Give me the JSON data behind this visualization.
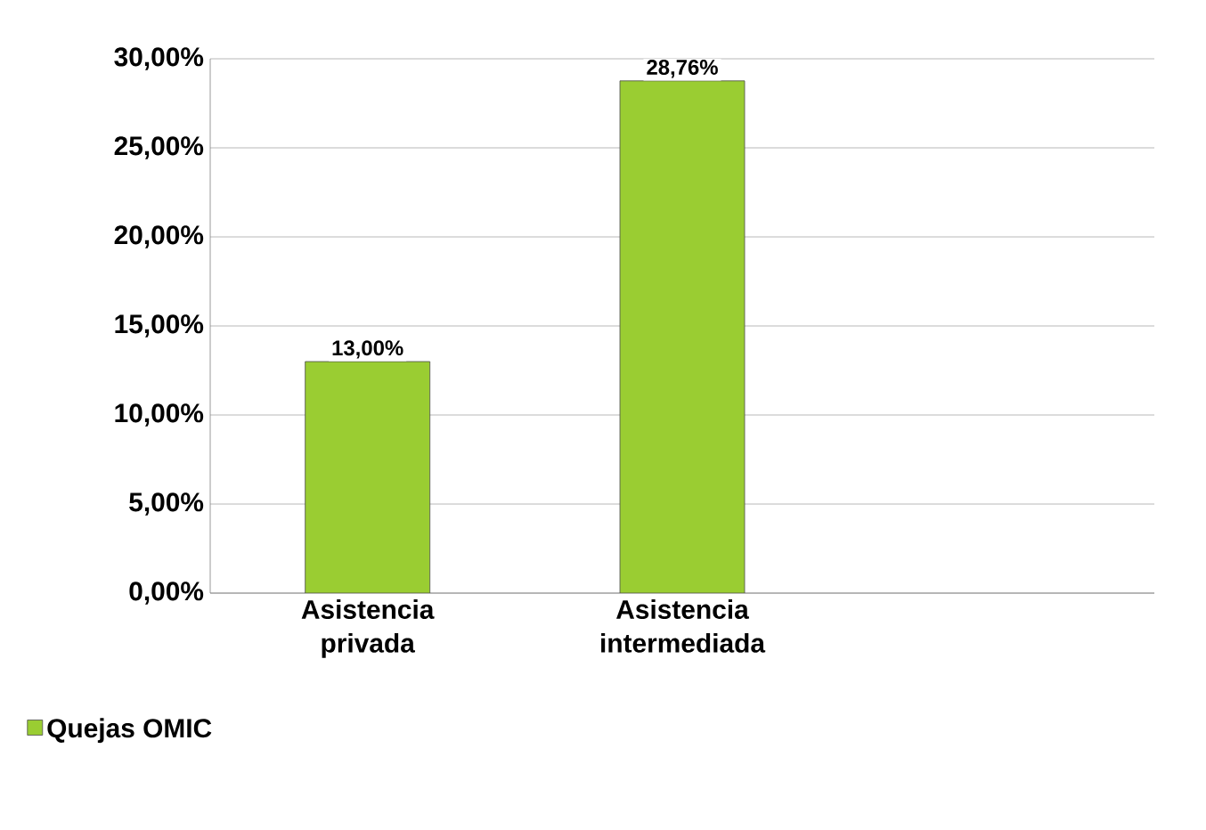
{
  "chart_data": {
    "type": "bar",
    "categories": [
      "Asistencia privada",
      "Asistencia intermediada",
      null
    ],
    "series": [
      {
        "name": "Quejas OMIC",
        "color": "#9acd32",
        "values": [
          13.0,
          28.76,
          null
        ],
        "value_labels": [
          "13,00%",
          "28,76%",
          null
        ]
      }
    ],
    "ylim": [
      0,
      30
    ],
    "yticks": [
      {
        "value": 0,
        "label": "0,00%"
      },
      {
        "value": 5,
        "label": "5,00%"
      },
      {
        "value": 10,
        "label": "10,00%"
      },
      {
        "value": 15,
        "label": "15,00%"
      },
      {
        "value": 20,
        "label": "20,00%"
      },
      {
        "value": 25,
        "label": "25,00%"
      },
      {
        "value": 30,
        "label": "30,00%"
      }
    ],
    "grid": "y",
    "legend": "bottom left"
  }
}
